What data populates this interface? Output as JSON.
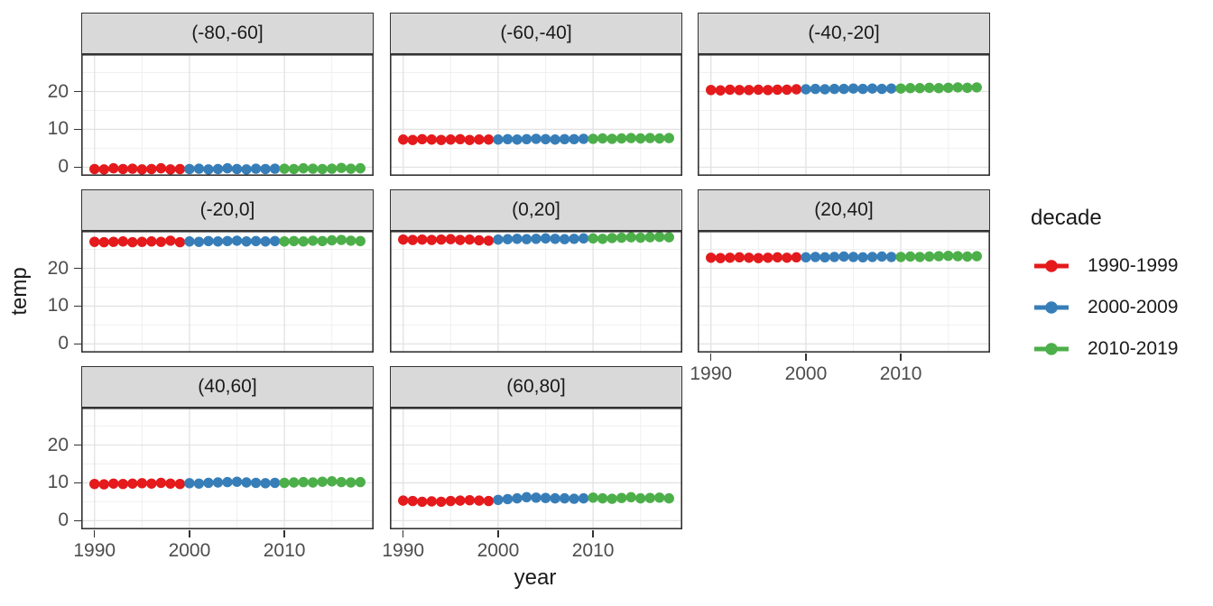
{
  "chart_data": {
    "type": "scatter",
    "xlabel": "year",
    "ylabel": "temp",
    "legend_title": "decade",
    "legend_position": "right",
    "grid": "major+minor",
    "x_ticks": [
      1990,
      2000,
      2010
    ],
    "y_ticks": [
      0,
      10,
      20
    ],
    "x_minor": [
      1995,
      2005,
      2015
    ],
    "y_minor": [
      5,
      15,
      25
    ],
    "xlim": [
      1988.6,
      2019.4
    ],
    "ylim": [
      -2.3,
      29.9
    ],
    "decades": [
      {
        "name": "1990-1999",
        "color": "#E41A1C",
        "from": 1990,
        "to": 1999
      },
      {
        "name": "2000-2009",
        "color": "#377EB8",
        "from": 2000,
        "to": 2009
      },
      {
        "name": "2010-2019",
        "color": "#4DAF4A",
        "from": 2010,
        "to": 2019
      }
    ],
    "years": [
      1990,
      1991,
      1992,
      1993,
      1994,
      1995,
      1996,
      1997,
      1998,
      1999,
      2000,
      2001,
      2002,
      2003,
      2004,
      2005,
      2006,
      2007,
      2008,
      2009,
      2010,
      2011,
      2012,
      2013,
      2014,
      2015,
      2016,
      2017,
      2018
    ],
    "facets": [
      {
        "label": "(-80,-60]",
        "values": [
          -0.5,
          -0.6,
          -0.3,
          -0.5,
          -0.4,
          -0.6,
          -0.5,
          -0.3,
          -0.6,
          -0.5,
          -0.5,
          -0.4,
          -0.6,
          -0.5,
          -0.3,
          -0.5,
          -0.6,
          -0.4,
          -0.5,
          -0.4,
          -0.4,
          -0.5,
          -0.3,
          -0.4,
          -0.5,
          -0.4,
          -0.2,
          -0.4,
          -0.3
        ]
      },
      {
        "label": "(-60,-40]",
        "values": [
          7.3,
          7.2,
          7.4,
          7.3,
          7.2,
          7.3,
          7.4,
          7.2,
          7.3,
          7.3,
          7.3,
          7.4,
          7.3,
          7.4,
          7.5,
          7.4,
          7.3,
          7.4,
          7.4,
          7.5,
          7.5,
          7.6,
          7.5,
          7.6,
          7.7,
          7.6,
          7.7,
          7.6,
          7.7
        ]
      },
      {
        "label": "(-40,-20]",
        "values": [
          20.4,
          20.3,
          20.5,
          20.4,
          20.4,
          20.5,
          20.4,
          20.5,
          20.5,
          20.6,
          20.6,
          20.7,
          20.6,
          20.7,
          20.7,
          20.8,
          20.7,
          20.8,
          20.7,
          20.8,
          20.8,
          20.9,
          20.9,
          21.0,
          20.9,
          21.0,
          21.1,
          21.0,
          21.1
        ]
      },
      {
        "label": "(-20,0]",
        "values": [
          27.0,
          26.9,
          27.0,
          27.1,
          26.9,
          27.0,
          27.1,
          27.0,
          27.3,
          26.9,
          27.1,
          27.0,
          27.2,
          27.1,
          27.2,
          27.3,
          27.1,
          27.2,
          27.1,
          27.2,
          27.1,
          27.2,
          27.1,
          27.3,
          27.2,
          27.4,
          27.5,
          27.3,
          27.2
        ]
      },
      {
        "label": "(0,20]",
        "values": [
          27.6,
          27.5,
          27.6,
          27.5,
          27.6,
          27.7,
          27.5,
          27.6,
          27.4,
          27.3,
          27.6,
          27.7,
          27.8,
          27.7,
          27.8,
          27.9,
          27.8,
          27.7,
          27.8,
          27.9,
          27.9,
          27.8,
          28.0,
          28.1,
          28.2,
          28.1,
          28.2,
          28.3,
          28.2
        ]
      },
      {
        "label": "(20,40]",
        "values": [
          22.8,
          22.7,
          22.8,
          22.9,
          22.8,
          22.7,
          22.8,
          22.9,
          22.8,
          22.9,
          22.9,
          23.0,
          22.9,
          23.0,
          23.1,
          23.0,
          22.9,
          23.0,
          23.1,
          23.0,
          23.0,
          23.1,
          23.0,
          23.1,
          23.2,
          23.3,
          23.2,
          23.1,
          23.2
        ]
      },
      {
        "label": "(40,60]",
        "values": [
          9.7,
          9.6,
          9.8,
          9.7,
          9.8,
          9.9,
          9.8,
          10.0,
          9.8,
          9.7,
          9.9,
          9.8,
          10.0,
          10.1,
          10.2,
          10.3,
          10.1,
          10.0,
          9.9,
          10.0,
          10.0,
          10.1,
          10.2,
          10.1,
          10.3,
          10.4,
          10.2,
          10.1,
          10.2
        ]
      },
      {
        "label": "(60,80]",
        "values": [
          5.3,
          5.2,
          5.0,
          5.1,
          5.0,
          5.2,
          5.3,
          5.4,
          5.3,
          5.2,
          5.5,
          5.7,
          5.9,
          6.2,
          6.1,
          6.0,
          5.9,
          5.9,
          5.8,
          5.9,
          6.1,
          5.9,
          5.8,
          6.0,
          6.2,
          5.9,
          6.0,
          6.1,
          5.9
        ]
      }
    ],
    "style": {
      "strip_fill": "#D9D9D9",
      "panel_border": "#333333",
      "grid_major": "#E2E2E2",
      "grid_minor": "#F0F0F0",
      "tick_text": "#4D4D4D"
    }
  }
}
